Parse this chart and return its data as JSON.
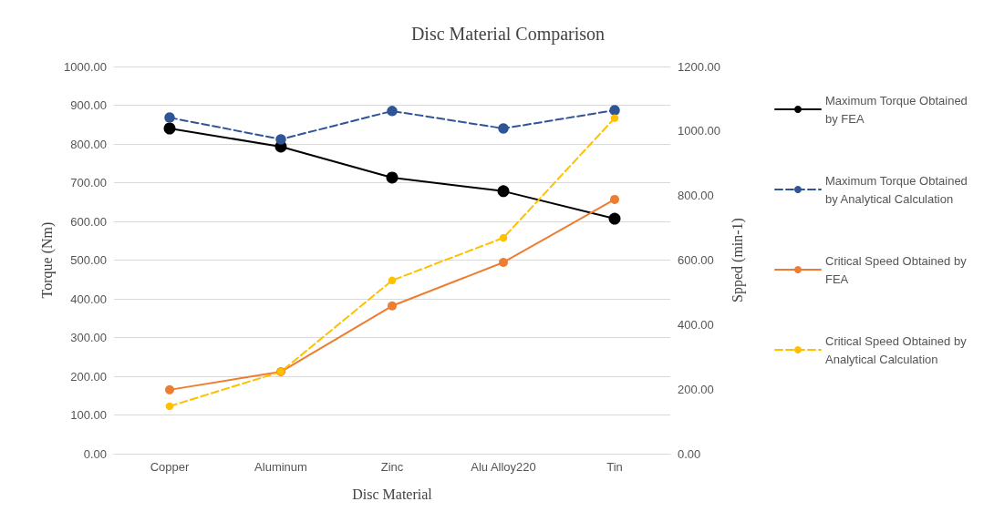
{
  "chart_data": {
    "type": "line",
    "title": "Disc Material Comparison",
    "xlabel": "Disc Material",
    "ylabel": "Torque (Nm)",
    "y2label": "Spped (min-1)",
    "categories": [
      "Copper",
      "Aluminum",
      "Zinc",
      "Alu Alloy220",
      "Tin"
    ],
    "series": [
      {
        "name": "Maximum Torque Obtained by FEA",
        "color": "#000000",
        "values": [
          840,
          793,
          713,
          678,
          607
        ],
        "line_style": "solid"
      },
      {
        "name": "Maximum Torque Obtained by Analytical Calculation",
        "color": "#2f5597",
        "values": [
          868,
          812,
          885,
          840,
          887
        ],
        "line_style": "dashed"
      },
      {
        "name": "Critical Speed Obtained by FEA",
        "color": "#ed7d31",
        "values": [
          198,
          254,
          458,
          593,
          788
        ],
        "axis": "y2",
        "line_style": "solid"
      },
      {
        "name": "Critical Speed Obtained by Analytical Calculation",
        "color": "#ffc000",
        "values": [
          147,
          254,
          537,
          669,
          1040
        ],
        "axis": "y2",
        "line_style": "dashed"
      }
    ],
    "ylim": [
      0,
      1000
    ],
    "yticks": [
      {
        "value": 0,
        "label": "0.00"
      },
      {
        "value": 100,
        "label": "100.00"
      },
      {
        "value": 200,
        "label": "200.00"
      },
      {
        "value": 300,
        "label": "300.00"
      },
      {
        "value": 400,
        "label": "400.00"
      },
      {
        "value": 500,
        "label": "500.00"
      },
      {
        "value": 600,
        "label": "600.00"
      },
      {
        "value": 700,
        "label": "700.00"
      },
      {
        "value": 800,
        "label": "800.00"
      },
      {
        "value": 900,
        "label": "900.00"
      },
      {
        "value": 1000,
        "label": "1000.00"
      }
    ],
    "y2lim": [
      0,
      1200
    ],
    "y2ticks": [
      {
        "value": 0,
        "label": "0.00"
      },
      {
        "value": 200,
        "label": "200.00"
      },
      {
        "value": 400,
        "label": "400.00"
      },
      {
        "value": 600,
        "label": "600.00"
      },
      {
        "value": 800,
        "label": "800.00"
      },
      {
        "value": 1000,
        "label": "1000.00"
      },
      {
        "value": 1200,
        "label": "1200.00"
      }
    ],
    "grid": "y",
    "legend": "right",
    "marker": "circle"
  }
}
